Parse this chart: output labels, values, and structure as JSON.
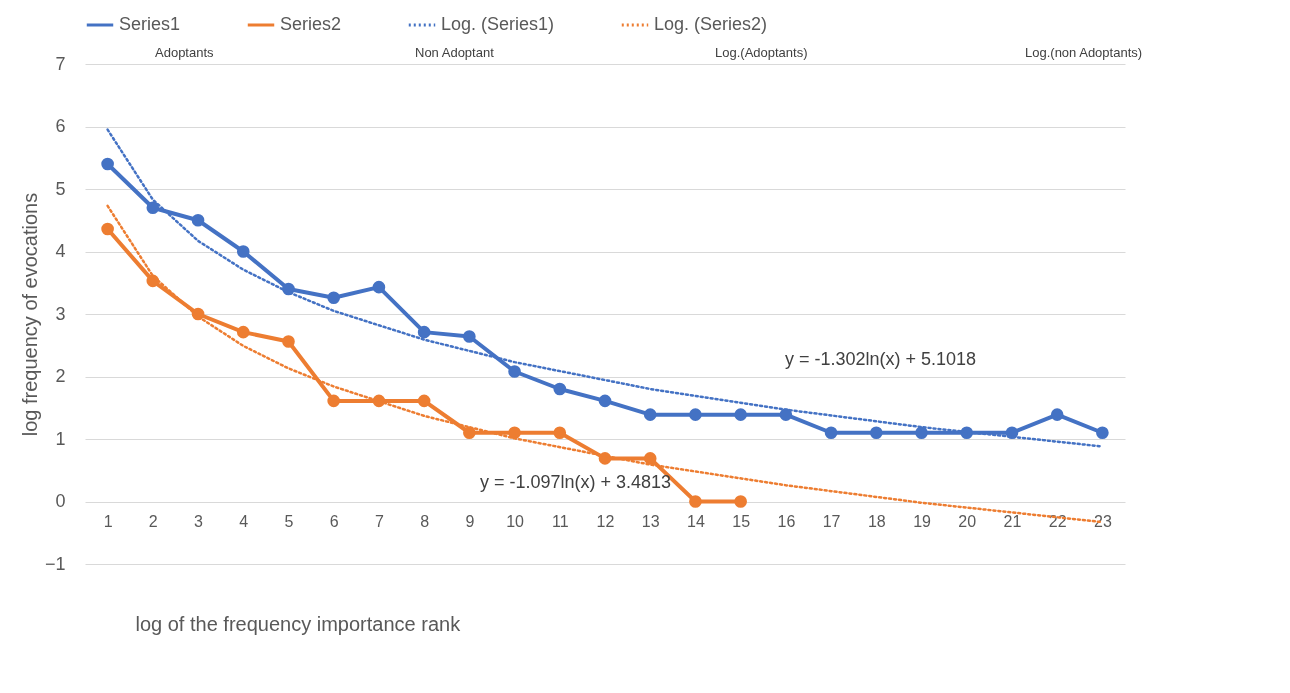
{
  "chart_data": {
    "type": "line",
    "xlabel": "log of the frequency importance rank",
    "ylabel": "log frequency of evocations",
    "x": [
      1,
      2,
      3,
      4,
      5,
      6,
      7,
      8,
      9,
      10,
      11,
      12,
      13,
      14,
      15,
      16,
      17,
      18,
      19,
      20,
      21,
      22,
      23
    ],
    "xlim": [
      0.5,
      23.5
    ],
    "xticks": [
      1,
      2,
      3,
      4,
      5,
      6,
      7,
      8,
      9,
      10,
      11,
      12,
      13,
      14,
      15,
      16,
      17,
      18,
      19,
      20,
      21,
      22,
      23
    ],
    "ylim": [
      -1,
      7
    ],
    "yticks": [
      -1,
      0,
      1,
      2,
      3,
      4,
      5,
      6,
      7
    ],
    "grid": "y",
    "legend": "top",
    "marker": "circle",
    "series": [
      {
        "name": "Series1",
        "color": "#4472c4",
        "values": [
          5.4,
          4.7,
          4.5,
          4.0,
          3.4,
          3.26,
          3.43,
          2.71,
          2.64,
          2.08,
          1.8,
          1.61,
          1.39,
          1.39,
          1.39,
          1.39,
          1.1,
          1.1,
          1.1,
          1.1,
          1.1,
          1.39,
          1.1
        ]
      },
      {
        "name": "Series2",
        "color": "#ed7d31",
        "values": [
          4.36,
          3.53,
          3.0,
          2.71,
          2.56,
          1.61,
          1.61,
          1.61,
          1.1,
          1.1,
          1.1,
          0.69,
          0.69,
          0,
          0,
          null,
          null,
          null,
          null,
          null,
          null,
          null,
          null
        ]
      },
      {
        "name": "Log. (Series1)",
        "color": "#4472c4",
        "type": "line",
        "line_style": "dotted",
        "marker": "none",
        "x": [
          1,
          2,
          3,
          4,
          5,
          6,
          8,
          10,
          13,
          16,
          19,
          23
        ],
        "values": [
          5.95,
          4.83,
          4.17,
          3.71,
          3.35,
          3.05,
          2.59,
          2.23,
          1.8,
          1.47,
          1.19,
          0.88
        ]
      },
      {
        "name": "Log. (Series2)",
        "color": "#ed7d31",
        "type": "line",
        "line_style": "dotted",
        "marker": "none",
        "x": [
          1,
          2,
          3,
          4,
          5,
          6,
          8,
          10,
          13,
          16,
          19,
          23
        ],
        "values": [
          4.73,
          3.61,
          2.96,
          2.49,
          2.13,
          1.84,
          1.37,
          1.01,
          0.59,
          0.26,
          -0.02,
          -0.33
        ]
      }
    ],
    "annotations": [
      "Adoptants",
      "Non Adoptant",
      "Log.(Adoptants)",
      "Log.(non Adoptants)",
      "y = -1.302ln(x) + 5.1018",
      "y = -1.097ln(x) + 3.4813"
    ]
  }
}
